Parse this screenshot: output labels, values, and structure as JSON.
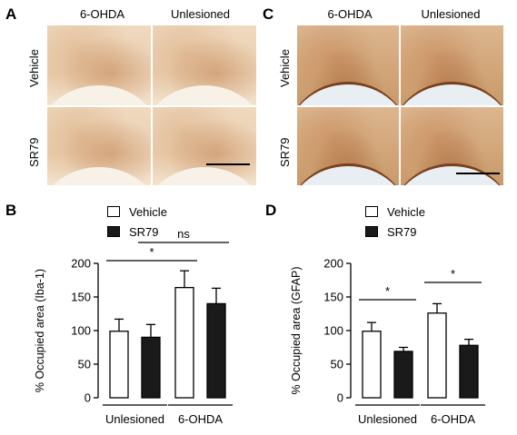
{
  "panel_letters": {
    "a": "A",
    "b": "B",
    "c": "C",
    "d": "D"
  },
  "micrographs": {
    "A": {
      "col1": "6-OHDA",
      "col2": "Unlesioned",
      "row1": "Vehicle",
      "row2": "SR79"
    },
    "C": {
      "col1": "6-OHDA",
      "col2": "Unlesioned",
      "row1": "Vehicle",
      "row2": "SR79"
    }
  },
  "legend": {
    "vehicle": "Vehicle",
    "sr79": "SR79"
  },
  "colors": {
    "vehicle": "#ffffff",
    "sr79": "#1a1a1a",
    "axis": "#000000"
  },
  "chart_data": [
    {
      "type": "bar",
      "panel": "B",
      "ylabel": "% Occupied area (Iba-1)",
      "ylim": [
        0,
        200
      ],
      "yticks": [
        0,
        50,
        100,
        150,
        200
      ],
      "categories": [
        "Unlesioned",
        "6-OHDA"
      ],
      "series": [
        {
          "name": "Vehicle",
          "values": [
            99,
            164
          ],
          "errors": [
            18,
            25
          ]
        },
        {
          "name": "SR79",
          "values": [
            90,
            140
          ],
          "errors": [
            19,
            23
          ]
        }
      ],
      "annotations": [
        {
          "text": "*",
          "between": [
            "Unlesioned Vehicle",
            "6-OHDA Vehicle"
          ]
        },
        {
          "text": "ns",
          "between": [
            "Unlesioned SR79",
            "6-OHDA SR79"
          ]
        }
      ]
    },
    {
      "type": "bar",
      "panel": "D",
      "ylabel": "% Occupied area (GFAP)",
      "ylim": [
        0,
        200
      ],
      "yticks": [
        0,
        50,
        100,
        150,
        200
      ],
      "categories": [
        "Unlesioned",
        "6-OHDA"
      ],
      "series": [
        {
          "name": "Vehicle",
          "values": [
            99,
            126
          ],
          "errors": [
            13,
            14
          ]
        },
        {
          "name": "SR79",
          "values": [
            69,
            78
          ],
          "errors": [
            6,
            9
          ]
        }
      ],
      "annotations": [
        {
          "text": "*",
          "between": [
            "Unlesioned Vehicle",
            "Unlesioned SR79"
          ]
        },
        {
          "text": "*",
          "between": [
            "6-OHDA Vehicle",
            "6-OHDA SR79"
          ]
        }
      ]
    }
  ]
}
